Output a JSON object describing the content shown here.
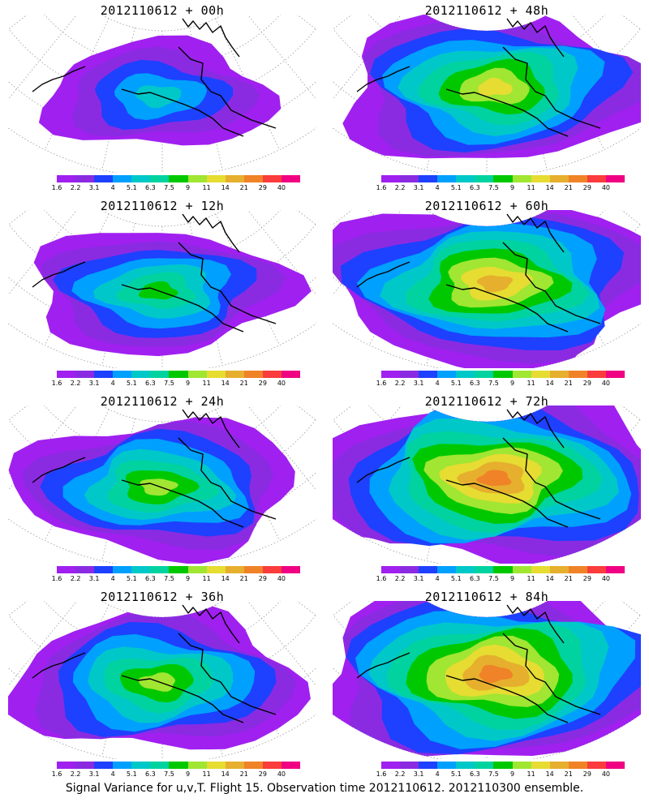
{
  "caption": "Signal Variance for u,v,T. Flight 15. Observation time 2012110612. 2012110300 ensemble.",
  "colorbar": {
    "colors": [
      "#a020f0",
      "#8a2be2",
      "#1e40ff",
      "#00a0ff",
      "#00c8c8",
      "#00d3a0",
      "#00c800",
      "#a0e632",
      "#e6dc32",
      "#e6af2d",
      "#f08228",
      "#fa3c3c",
      "#f00082"
    ],
    "labels": [
      "1.6",
      "2.2",
      "3.1",
      "4",
      "5.1",
      "6.3",
      "7.5",
      "9",
      "11",
      "14",
      "21",
      "29",
      "40"
    ]
  },
  "panels": [
    {
      "title": "2012110612 + 00h",
      "intensity": 0.15
    },
    {
      "title": "2012110612 + 48h",
      "intensity": 0.55
    },
    {
      "title": "2012110612 + 12h",
      "intensity": 0.3
    },
    {
      "title": "2012110612 + 60h",
      "intensity": 0.65
    },
    {
      "title": "2012110612 + 24h",
      "intensity": 0.4
    },
    {
      "title": "2012110612 + 72h",
      "intensity": 0.75
    },
    {
      "title": "2012110612 + 36h",
      "intensity": 0.45
    },
    {
      "title": "2012110612 + 84h",
      "intensity": 0.8
    }
  ]
}
